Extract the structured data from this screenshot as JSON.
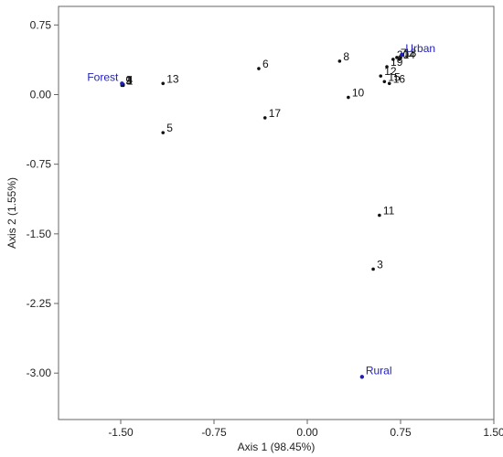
{
  "chart_data": {
    "type": "scatter",
    "xlabel": "Axis 1 (98.45%)",
    "ylabel": "Axis 2 (1.55%)",
    "xlim": [
      -2.0,
      1.5
    ],
    "ylim": [
      -3.5,
      0.95
    ],
    "xticks": [
      -1.5,
      -0.75,
      0.0,
      0.75,
      1.5
    ],
    "xtick_labels": [
      "-1.50",
      "-0.75",
      "0.00",
      "0.75",
      "1.50"
    ],
    "yticks": [
      0.75,
      0.0,
      -0.75,
      -1.5,
      -2.25,
      -3.0
    ],
    "ytick_labels": [
      "0.75",
      "0.00",
      "-0.75",
      "-1.50",
      "-2.25",
      "-3.00"
    ],
    "grid": false,
    "colors": {
      "points": "#111111",
      "environments": "#1f1fb4",
      "frame": "#666666"
    },
    "points": [
      {
        "label": "1",
        "x": -1.48,
        "y": 0.1
      },
      {
        "label": "2",
        "x": -1.49,
        "y": 0.11
      },
      {
        "label": "4",
        "x": -1.48,
        "y": 0.11
      },
      {
        "label": "9",
        "x": -1.49,
        "y": 0.1
      },
      {
        "label": "13",
        "x": -1.16,
        "y": 0.12
      },
      {
        "label": "5",
        "x": -1.16,
        "y": -0.41
      },
      {
        "label": "6",
        "x": -0.39,
        "y": 0.28
      },
      {
        "label": "17",
        "x": -0.34,
        "y": -0.25
      },
      {
        "label": "8",
        "x": 0.26,
        "y": 0.36
      },
      {
        "label": "10",
        "x": 0.33,
        "y": -0.03
      },
      {
        "label": "12",
        "x": 0.59,
        "y": 0.2
      },
      {
        "label": "15",
        "x": 0.62,
        "y": 0.14
      },
      {
        "label": "16",
        "x": 0.66,
        "y": 0.12
      },
      {
        "label": "19",
        "x": 0.64,
        "y": 0.3
      },
      {
        "label": "20",
        "x": 0.69,
        "y": 0.38
      },
      {
        "label": "7",
        "x": 0.72,
        "y": 0.4
      },
      {
        "label": "14",
        "x": 0.74,
        "y": 0.38
      },
      {
        "label": "18",
        "x": 0.75,
        "y": 0.4
      },
      {
        "label": "11",
        "x": 0.58,
        "y": -1.3
      },
      {
        "label": "3",
        "x": 0.53,
        "y": -1.88
      }
    ],
    "environments": [
      {
        "label": "Forest",
        "x": -1.49,
        "y": 0.12
      },
      {
        "label": "Urban",
        "x": 0.76,
        "y": 0.43
      },
      {
        "label": "Rural",
        "x": 0.44,
        "y": -3.04
      }
    ]
  }
}
